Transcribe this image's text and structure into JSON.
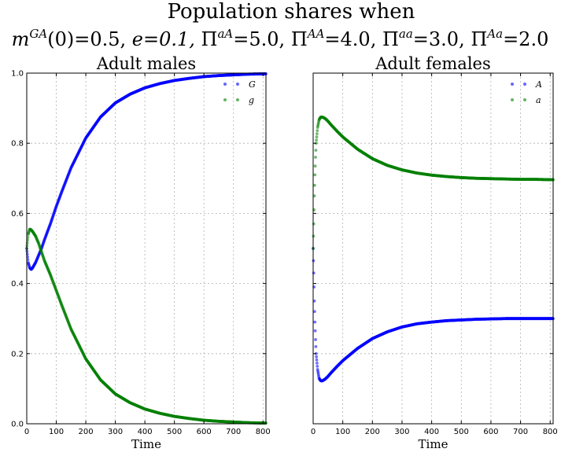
{
  "figure": {
    "title_line1": "Population shares when",
    "title_line2": "m^{GA}(0)=0.5, e=0.1, Π^{aA}=5.0, Π^{AA}=4.0, Π^{aa}=3.0, Π^{Aa}=2.0",
    "title_line2_parts": {
      "m_base": "m",
      "m_sup": "GA",
      "m_rest": "(0)=0.5,",
      "e_text": "e=0.1,",
      "pi": "Π",
      "aA_sup": "aA",
      "aA_val": "=5.0,",
      "AA_sup": "AA",
      "AA_val": "=4.0,",
      "aa_sup": "aa",
      "aa_val": "=3.0,",
      "Aa_sup": "Aa",
      "Aa_val": "=2.0"
    }
  },
  "chart_data": [
    {
      "type": "scatter",
      "title": "Adult males",
      "xlabel": "Time",
      "ylabel": "",
      "xlim": [
        0,
        810
      ],
      "ylim": [
        0,
        1
      ],
      "xticks": [
        "0",
        "100",
        "200",
        "300",
        "400",
        "500",
        "600",
        "700",
        "800"
      ],
      "yticks": [
        "0.0",
        "0.2",
        "0.4",
        "0.6",
        "0.8",
        "1.0"
      ],
      "grid": true,
      "legend_position": "top-right",
      "series": [
        {
          "name": "G",
          "color": "#0000ff",
          "x": [
            0,
            5,
            10,
            15,
            20,
            30,
            40,
            50,
            60,
            80,
            100,
            120,
            150,
            200,
            250,
            300,
            350,
            400,
            450,
            500,
            550,
            600,
            650,
            700,
            750,
            810
          ],
          "y": [
            0.5,
            0.46,
            0.445,
            0.44,
            0.445,
            0.46,
            0.48,
            0.5,
            0.525,
            0.57,
            0.62,
            0.665,
            0.73,
            0.815,
            0.875,
            0.915,
            0.94,
            0.958,
            0.97,
            0.979,
            0.985,
            0.99,
            0.993,
            0.995,
            0.997,
            0.998
          ]
        },
        {
          "name": "g",
          "color": "#008000",
          "x": [
            0,
            5,
            10,
            15,
            20,
            30,
            40,
            50,
            60,
            80,
            100,
            120,
            150,
            200,
            250,
            300,
            350,
            400,
            450,
            500,
            550,
            600,
            650,
            700,
            750,
            810
          ],
          "y": [
            0.5,
            0.54,
            0.555,
            0.553,
            0.548,
            0.535,
            0.515,
            0.49,
            0.465,
            0.425,
            0.38,
            0.335,
            0.27,
            0.185,
            0.125,
            0.085,
            0.06,
            0.042,
            0.03,
            0.021,
            0.015,
            0.01,
            0.007,
            0.005,
            0.003,
            0.002
          ]
        }
      ]
    },
    {
      "type": "scatter",
      "title": "Adult females",
      "xlabel": "Time",
      "ylabel": "",
      "xlim": [
        0,
        810
      ],
      "ylim": [
        0,
        1
      ],
      "xticks": [
        "0",
        "100",
        "200",
        "300",
        "400",
        "500",
        "600",
        "700",
        "800"
      ],
      "yticks": [],
      "grid": true,
      "legend_position": "top-right",
      "series": [
        {
          "name": "A",
          "color": "#0000ff",
          "x": [
            0,
            2,
            4,
            6,
            8,
            10,
            15,
            20,
            25,
            30,
            40,
            50,
            60,
            80,
            100,
            150,
            200,
            250,
            300,
            350,
            400,
            450,
            500,
            550,
            600,
            650,
            700,
            750,
            810
          ],
          "y": [
            0.5,
            0.43,
            0.35,
            0.29,
            0.24,
            0.2,
            0.155,
            0.13,
            0.123,
            0.122,
            0.127,
            0.135,
            0.145,
            0.163,
            0.18,
            0.215,
            0.243,
            0.262,
            0.276,
            0.285,
            0.29,
            0.294,
            0.296,
            0.298,
            0.299,
            0.3,
            0.3,
            0.3,
            0.3
          ]
        },
        {
          "name": "a",
          "color": "#008000",
          "x": [
            0,
            2,
            4,
            6,
            8,
            10,
            15,
            20,
            25,
            30,
            40,
            50,
            60,
            80,
            100,
            150,
            200,
            250,
            300,
            350,
            400,
            450,
            500,
            550,
            600,
            650,
            700,
            750,
            810
          ],
          "y": [
            0.5,
            0.57,
            0.65,
            0.71,
            0.76,
            0.8,
            0.845,
            0.867,
            0.874,
            0.875,
            0.871,
            0.863,
            0.853,
            0.835,
            0.818,
            0.783,
            0.756,
            0.737,
            0.724,
            0.715,
            0.709,
            0.705,
            0.702,
            0.7,
            0.699,
            0.698,
            0.697,
            0.697,
            0.696
          ]
        }
      ]
    }
  ]
}
